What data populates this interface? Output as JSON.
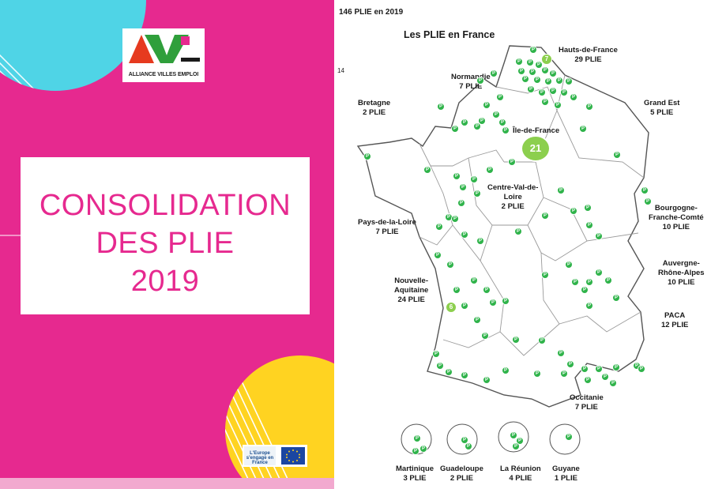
{
  "cover": {
    "logo": {
      "brand_letters": "AVE",
      "subtitle": "ALLIANCE VILLES EMPLOI"
    },
    "title_lines": [
      "CONSOLIDATION",
      "DES PLIE",
      "2019"
    ],
    "partner_logos": {
      "fse_text": "L'Europe s'engage en France",
      "eu_flag": "eu-flag-icon"
    }
  },
  "map": {
    "header": "146 PLIE en 2019",
    "title": "Les PLIE en France",
    "side_number": "14",
    "colors": {
      "marker": "#2fb34a",
      "cluster": "#8ccf4e",
      "accent": "#e6298f"
    },
    "regions": [
      {
        "name": "Hauts-de-France",
        "count": "29 PLIE"
      },
      {
        "name": "Normandie",
        "count": "7 PLIE"
      },
      {
        "name": "Bretagne",
        "count": "2 PLIE"
      },
      {
        "name": "Grand Est",
        "count": "5 PLIE"
      },
      {
        "name": "Île-de-France",
        "count": ""
      },
      {
        "name": "Centre-Val-de-Loire",
        "count": "2 PLIE"
      },
      {
        "name": "Pays-de-la-Loire",
        "count": "7 PLIE"
      },
      {
        "name": "Bourgogne-Franche-Comté",
        "count": "10 PLIE"
      },
      {
        "name": "Auvergne-Rhône-Alpes",
        "count": "10 PLIE"
      },
      {
        "name": "Nouvelle-Aquitaine",
        "count": "24 PLIE"
      },
      {
        "name": "PACA",
        "count": "12 PLIE"
      },
      {
        "name": "Occitanie",
        "count": "7 PLIE"
      }
    ],
    "clusters": [
      {
        "region": "Île-de-France",
        "value": "21"
      },
      {
        "region": "Hauts-de-France",
        "value": "7"
      },
      {
        "region": "Nouvelle-Aquitaine",
        "value": "6"
      }
    ],
    "marker_glyph": "P",
    "overseas": [
      {
        "name": "Martinique",
        "count": "3 PLIE"
      },
      {
        "name": "Guadeloupe",
        "count": "2 PLIE"
      },
      {
        "name": "La Réunion",
        "count": "4 PLIE"
      },
      {
        "name": "Guyane",
        "count": "1 PLIE"
      }
    ]
  }
}
